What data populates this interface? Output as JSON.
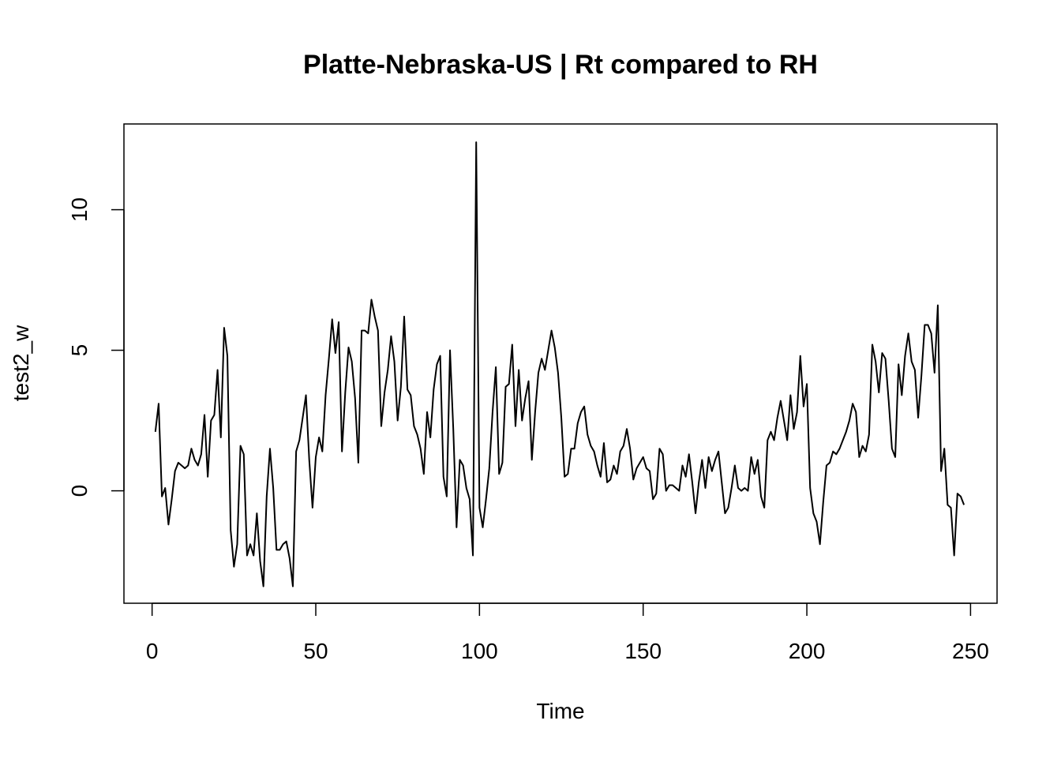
{
  "chart_data": {
    "type": "line",
    "title": "Platte-Nebraska-US | Rt compared to RH",
    "xlabel": "Time",
    "ylabel": "test2_w",
    "xlim": [
      -8.6,
      258.1
    ],
    "ylim": [
      -4.0,
      13.05
    ],
    "xticks": [
      0,
      50,
      100,
      150,
      200,
      250
    ],
    "yticks": [
      0,
      5,
      10
    ],
    "xtick_labels": [
      "0",
      "50",
      "100",
      "150",
      "200",
      "250"
    ],
    "ytick_labels": [
      "0",
      "5",
      "10"
    ],
    "grid": false,
    "legend": false,
    "line_color": "#000000",
    "series": [
      {
        "x": [
          1,
          2,
          3,
          4,
          5,
          6,
          7,
          8,
          9,
          10,
          11,
          12,
          13,
          14,
          15,
          16,
          17,
          18,
          19,
          20,
          21,
          22,
          23,
          24,
          25,
          26,
          27,
          28,
          29,
          30,
          31,
          32,
          33,
          34,
          35,
          36,
          37,
          38,
          39,
          40,
          41,
          42,
          43,
          44,
          45,
          46,
          47,
          48,
          49,
          50,
          51,
          52,
          53,
          54,
          55,
          56,
          57,
          58,
          59,
          60,
          61,
          62,
          63,
          64,
          65,
          66,
          67,
          68,
          69,
          70,
          71,
          72,
          73,
          74,
          75,
          76,
          77,
          78,
          79,
          80,
          81,
          82,
          83,
          84,
          85,
          86,
          87,
          88,
          89,
          90,
          91,
          92,
          93,
          94,
          95,
          96,
          97,
          98,
          99,
          100,
          101,
          102,
          103,
          104,
          105,
          106,
          107,
          108,
          109,
          110,
          111,
          112,
          113,
          114,
          115,
          116,
          117,
          118,
          119,
          120,
          121,
          122,
          123,
          124,
          125,
          126,
          127,
          128,
          129,
          130,
          131,
          132,
          133,
          134,
          135,
          136,
          137,
          138,
          139,
          140,
          141,
          142,
          143,
          144,
          145,
          146,
          147,
          148,
          149,
          150,
          151,
          152,
          153,
          154,
          155,
          156,
          157,
          158,
          159,
          160,
          161,
          162,
          163,
          164,
          165,
          166,
          167,
          168,
          169,
          170,
          171,
          172,
          173,
          174,
          175,
          176,
          177,
          178,
          179,
          180,
          181,
          182,
          183,
          184,
          185,
          186,
          187,
          188,
          189,
          190,
          191,
          192,
          193,
          194,
          195,
          196,
          197,
          198,
          199,
          200,
          201,
          202,
          203,
          204,
          205,
          206,
          207,
          208,
          209,
          210,
          211,
          212,
          213,
          214,
          215,
          216,
          217,
          218,
          219,
          220,
          221,
          222,
          223,
          224,
          225,
          226,
          227,
          228,
          229,
          230,
          231,
          232,
          233,
          234,
          235,
          236,
          237,
          238,
          239,
          240,
          241,
          242,
          243,
          244,
          245,
          246,
          247,
          248
        ],
        "values": [
          2.1,
          3.1,
          -0.2,
          0.1,
          -1.2,
          -0.3,
          0.7,
          1.0,
          0.9,
          0.8,
          0.9,
          1.5,
          1.1,
          0.9,
          1.3,
          2.7,
          0.5,
          2.5,
          2.7,
          4.3,
          1.9,
          5.8,
          4.8,
          -1.4,
          -2.7,
          -1.9,
          1.6,
          1.3,
          -2.3,
          -1.9,
          -2.3,
          -0.8,
          -2.5,
          -3.4,
          -0.2,
          1.5,
          0.1,
          -2.1,
          -2.1,
          -1.9,
          -1.8,
          -2.4,
          -3.4,
          1.4,
          1.8,
          2.6,
          3.4,
          1.1,
          -0.6,
          1.2,
          1.9,
          1.4,
          3.4,
          4.7,
          6.1,
          4.9,
          6.0,
          1.4,
          3.5,
          5.1,
          4.6,
          3.3,
          1.0,
          5.7,
          5.7,
          5.6,
          6.8,
          6.2,
          5.7,
          2.3,
          3.5,
          4.3,
          5.5,
          4.6,
          2.5,
          3.7,
          6.2,
          3.6,
          3.4,
          2.3,
          2.0,
          1.5,
          0.6,
          2.8,
          1.9,
          3.6,
          4.5,
          4.8,
          0.5,
          -0.2,
          5.0,
          2.2,
          -1.3,
          1.1,
          0.9,
          0.1,
          -0.3,
          -2.3,
          12.4,
          -0.6,
          -1.3,
          -0.3,
          0.8,
          2.8,
          4.4,
          0.6,
          1.0,
          3.7,
          3.8,
          5.2,
          2.3,
          4.3,
          2.5,
          3.3,
          3.9,
          1.1,
          2.8,
          4.2,
          4.7,
          4.3,
          5.0,
          5.7,
          5.1,
          4.2,
          2.6,
          0.5,
          0.6,
          1.5,
          1.5,
          2.4,
          2.8,
          3.0,
          2.0,
          1.6,
          1.4,
          0.9,
          0.5,
          1.7,
          0.3,
          0.4,
          0.9,
          0.6,
          1.4,
          1.6,
          2.2,
          1.5,
          0.4,
          0.8,
          1.0,
          1.2,
          0.8,
          0.7,
          -0.3,
          -0.1,
          1.5,
          1.3,
          0.0,
          0.2,
          0.2,
          0.1,
          0.0,
          0.9,
          0.5,
          1.3,
          0.3,
          -0.8,
          0.3,
          1.1,
          0.1,
          1.2,
          0.7,
          1.1,
          1.4,
          0.3,
          -0.8,
          -0.6,
          0.1,
          0.9,
          0.1,
          0.0,
          0.1,
          0.0,
          1.2,
          0.6,
          1.1,
          -0.2,
          -0.6,
          1.8,
          2.1,
          1.8,
          2.6,
          3.2,
          2.5,
          1.8,
          3.4,
          2.2,
          2.8,
          4.8,
          3.0,
          3.8,
          0.1,
          -0.8,
          -1.1,
          -1.9,
          -0.4,
          0.9,
          1.0,
          1.4,
          1.3,
          1.5,
          1.8,
          2.1,
          2.5,
          3.1,
          2.8,
          1.2,
          1.6,
          1.4,
          2.0,
          5.2,
          4.6,
          3.5,
          4.9,
          4.7,
          3.2,
          1.5,
          1.2,
          4.5,
          3.4,
          4.8,
          5.6,
          4.6,
          4.3,
          2.6,
          4.1,
          5.9,
          5.9,
          5.6,
          4.2,
          6.6,
          0.7,
          1.5,
          -0.5,
          -0.6,
          -2.3,
          -0.1,
          -0.2,
          -0.5
        ]
      }
    ]
  }
}
